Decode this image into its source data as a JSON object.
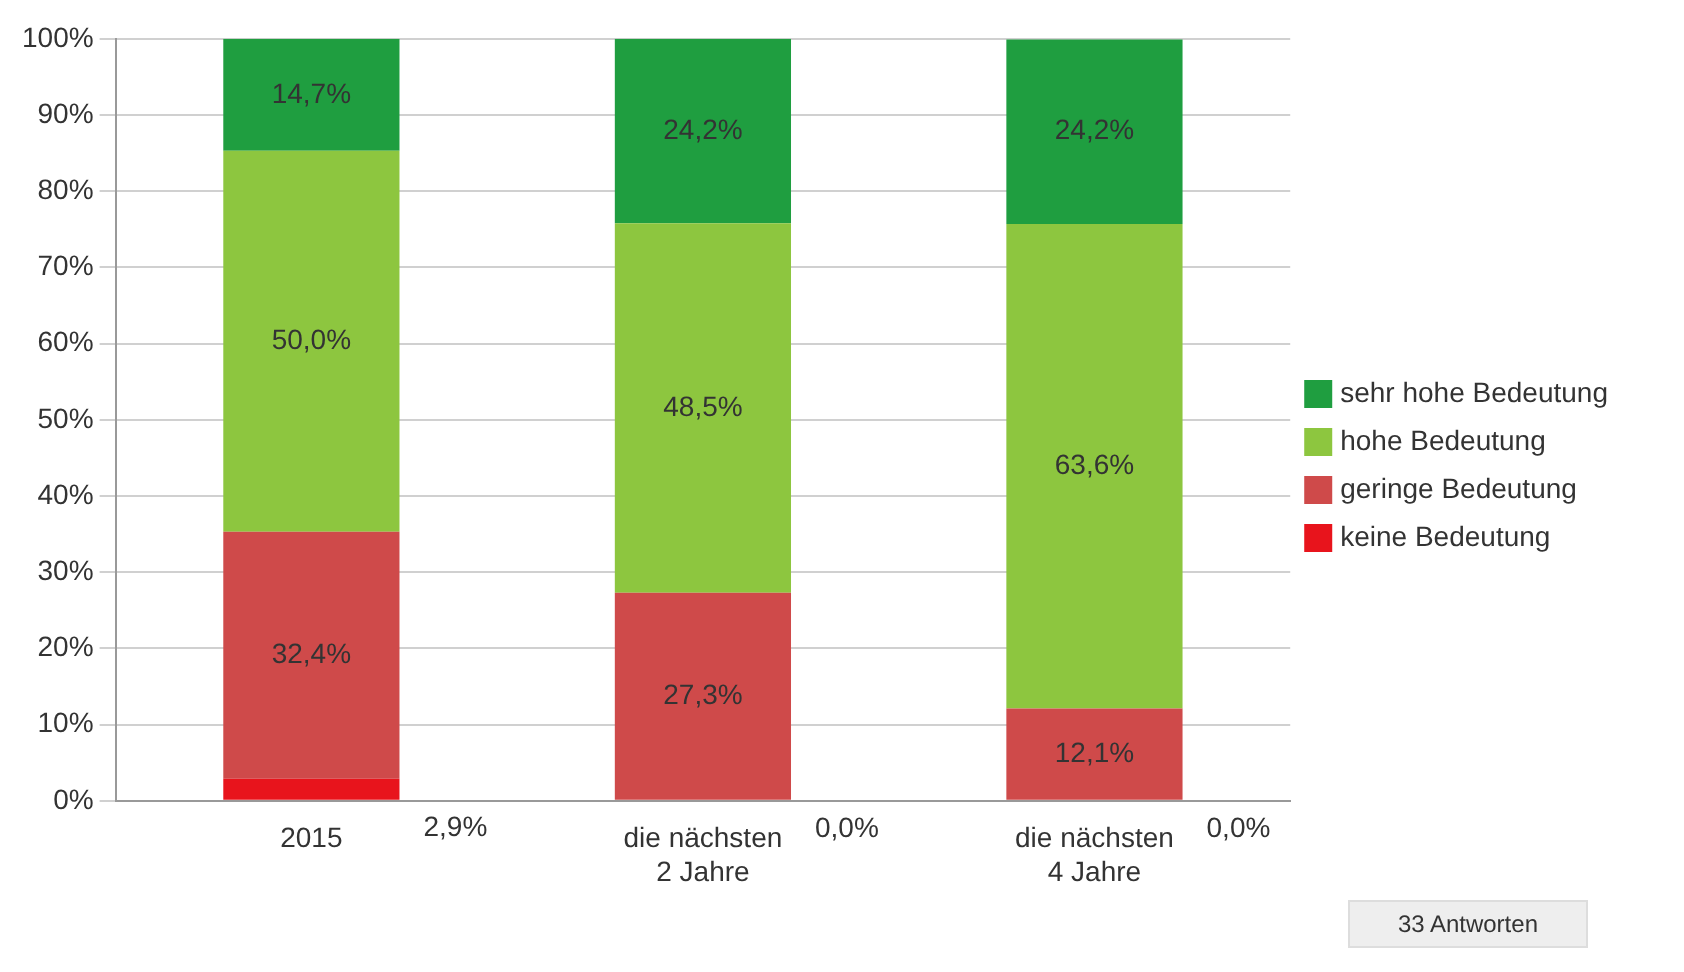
{
  "chart_data": {
    "type": "bar",
    "stacked": true,
    "categories": [
      "2015",
      "die nächsten\n2 Jahre",
      "die nächsten\n4 Jahre"
    ],
    "series": [
      {
        "name": "keine Bedeutung",
        "color": "#e8141c",
        "values": [
          2.9,
          0,
          0
        ],
        "value_labels": [
          "2,9%",
          "0,0%",
          "0,0%"
        ]
      },
      {
        "name": "geringe Bedeutung",
        "color": "#cf4a4a",
        "values": [
          32.4,
          27.3,
          12.1
        ],
        "value_labels": [
          "32,4%",
          "27,3%",
          "12,1%"
        ]
      },
      {
        "name": "hohe Bedeutung",
        "color": "#8dc63f",
        "values": [
          50.0,
          48.5,
          63.6
        ],
        "value_labels": [
          "50,0%",
          "48,5%",
          "63,6%"
        ]
      },
      {
        "name": "sehr hohe Bedeutung",
        "color": "#1f9e40",
        "values": [
          14.7,
          24.2,
          24.2
        ],
        "value_labels": [
          "14,7%",
          "24,2%",
          "24,2%"
        ]
      }
    ],
    "ylim": [
      0,
      100
    ],
    "yticks": [
      {
        "value": 0,
        "label": "0%"
      },
      {
        "value": 10,
        "label": "10%"
      },
      {
        "value": 20,
        "label": "20%"
      },
      {
        "value": 30,
        "label": "30%"
      },
      {
        "value": 40,
        "label": "40%"
      },
      {
        "value": 50,
        "label": "50%"
      },
      {
        "value": 60,
        "label": "60%"
      },
      {
        "value": 70,
        "label": "70%"
      },
      {
        "value": 80,
        "label": "80%"
      },
      {
        "value": 90,
        "label": "90%"
      },
      {
        "value": 100,
        "label": "100%"
      }
    ],
    "grid": "y",
    "legend": "right",
    "annotations": [
      "33 Antworten"
    ]
  }
}
